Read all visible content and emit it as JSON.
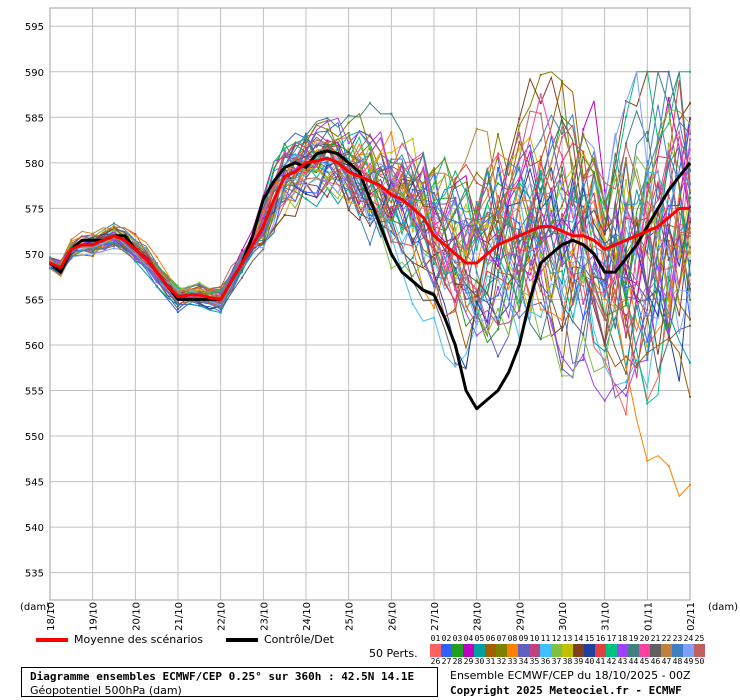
{
  "chart_data": {
    "type": "line",
    "unit_left": "(dam)",
    "unit_right": "(dam)",
    "y_ticks": [
      535,
      540,
      545,
      550,
      555,
      560,
      565,
      570,
      575,
      580,
      585,
      590,
      595
    ],
    "ylim": [
      532,
      597
    ],
    "x_ticks": [
      "18/10",
      "19/10",
      "20/10",
      "21/10",
      "22/10",
      "23/10",
      "24/10",
      "25/10",
      "26/10",
      "27/10",
      "28/10",
      "29/10",
      "30/10",
      "31/10",
      "01/11",
      "02/11"
    ],
    "x_days": [
      0,
      15
    ],
    "grid": true,
    "series": [
      {
        "name": "Moyenne des scénarios",
        "color": "#ff0000",
        "x": [
          0,
          0.25,
          0.5,
          0.75,
          1,
          1.25,
          1.5,
          1.75,
          2,
          2.25,
          2.5,
          2.75,
          3,
          3.25,
          3.5,
          3.75,
          4,
          4.25,
          4.5,
          4.75,
          5,
          5.25,
          5.5,
          5.75,
          6,
          6.25,
          6.5,
          6.75,
          7,
          7.25,
          7.5,
          7.75,
          8,
          8.25,
          8.5,
          8.75,
          9,
          9.25,
          9.5,
          9.75,
          10,
          10.25,
          10.5,
          10.75,
          11,
          11.25,
          11.5,
          11.75,
          12,
          12.25,
          12.5,
          12.75,
          13,
          13.25,
          13.5,
          13.75,
          14,
          14.25,
          14.5,
          14.75,
          15
        ],
        "y": [
          569,
          568.5,
          570.5,
          571,
          571,
          571.5,
          572,
          571.5,
          570.5,
          569.5,
          568,
          566.5,
          565.3,
          565.5,
          565.5,
          565.2,
          565,
          567,
          569,
          571,
          573,
          576,
          578.5,
          579,
          580,
          580.2,
          580.5,
          580,
          579,
          578.5,
          578,
          577.5,
          576.5,
          576,
          575,
          574,
          572,
          571,
          570,
          569,
          569,
          570,
          571,
          571.5,
          572,
          572.5,
          573,
          573,
          572.5,
          572,
          572,
          571.5,
          570.5,
          571,
          571.5,
          572,
          572.5,
          573,
          574,
          575,
          575
        ]
      },
      {
        "name": "Contrôle/Det",
        "color": "#000000",
        "x": [
          0,
          0.25,
          0.5,
          0.75,
          1,
          1.25,
          1.5,
          1.75,
          2,
          2.25,
          2.5,
          2.75,
          3,
          3.25,
          3.5,
          3.75,
          4,
          4.25,
          4.5,
          4.75,
          5,
          5.25,
          5.5,
          5.75,
          6,
          6.25,
          6.5,
          6.75,
          7,
          7.25,
          7.5,
          7.75,
          8,
          8.25,
          8.5,
          8.75,
          9,
          9.25,
          9.5,
          9.75,
          10,
          10.25,
          10.5,
          10.75,
          11,
          11.25,
          11.5,
          11.75,
          12,
          12.25,
          12.5,
          12.75,
          13,
          13.25,
          13.5,
          13.75,
          14,
          14.25,
          14.5,
          14.75,
          15
        ],
        "y": [
          569,
          568,
          570.5,
          571.5,
          571.5,
          571.5,
          572,
          572,
          570.5,
          569.5,
          568,
          566.5,
          565,
          565,
          565,
          565,
          565,
          567,
          569,
          572,
          576,
          578,
          579.5,
          580,
          579.5,
          581,
          581.3,
          581,
          580,
          579,
          576,
          573,
          570,
          568,
          567,
          566,
          565.5,
          563,
          560,
          555,
          553,
          554,
          555,
          557,
          560,
          565,
          569,
          570,
          571,
          571.5,
          571,
          570,
          568,
          568,
          569.5,
          571,
          573,
          575,
          577,
          578.5,
          580
        ]
      }
    ],
    "members_label": "50 Perts.",
    "member_ids": [
      "01",
      "02",
      "03",
      "04",
      "05",
      "06",
      "07",
      "08",
      "09",
      "10",
      "11",
      "12",
      "13",
      "14",
      "15",
      "16",
      "17",
      "18",
      "19",
      "20",
      "21",
      "22",
      "23",
      "24",
      "25",
      "26",
      "27",
      "28",
      "29",
      "30",
      "31",
      "32",
      "33",
      "34",
      "35",
      "36",
      "37",
      "38",
      "39",
      "40",
      "41",
      "42",
      "43",
      "44",
      "45",
      "46",
      "47",
      "48",
      "49",
      "50"
    ]
  },
  "footer": {
    "title_line1": "Diagramme ensembles ECMWF/CEP 0.25° sur 360h : 42.5N 14.1E",
    "title_line2": "Géopotentiel 500hPa (dam)",
    "right_line1": "Ensemble ECMWF/CEP du 18/10/2025 - 00Z",
    "right_line2": "Copyright 2025 Meteociel.fr - ECMWF"
  },
  "colors": {
    "mean": "#ff0000",
    "control": "#000000",
    "grid": "#c0c0c0",
    "axis": "#a0a0a0"
  }
}
